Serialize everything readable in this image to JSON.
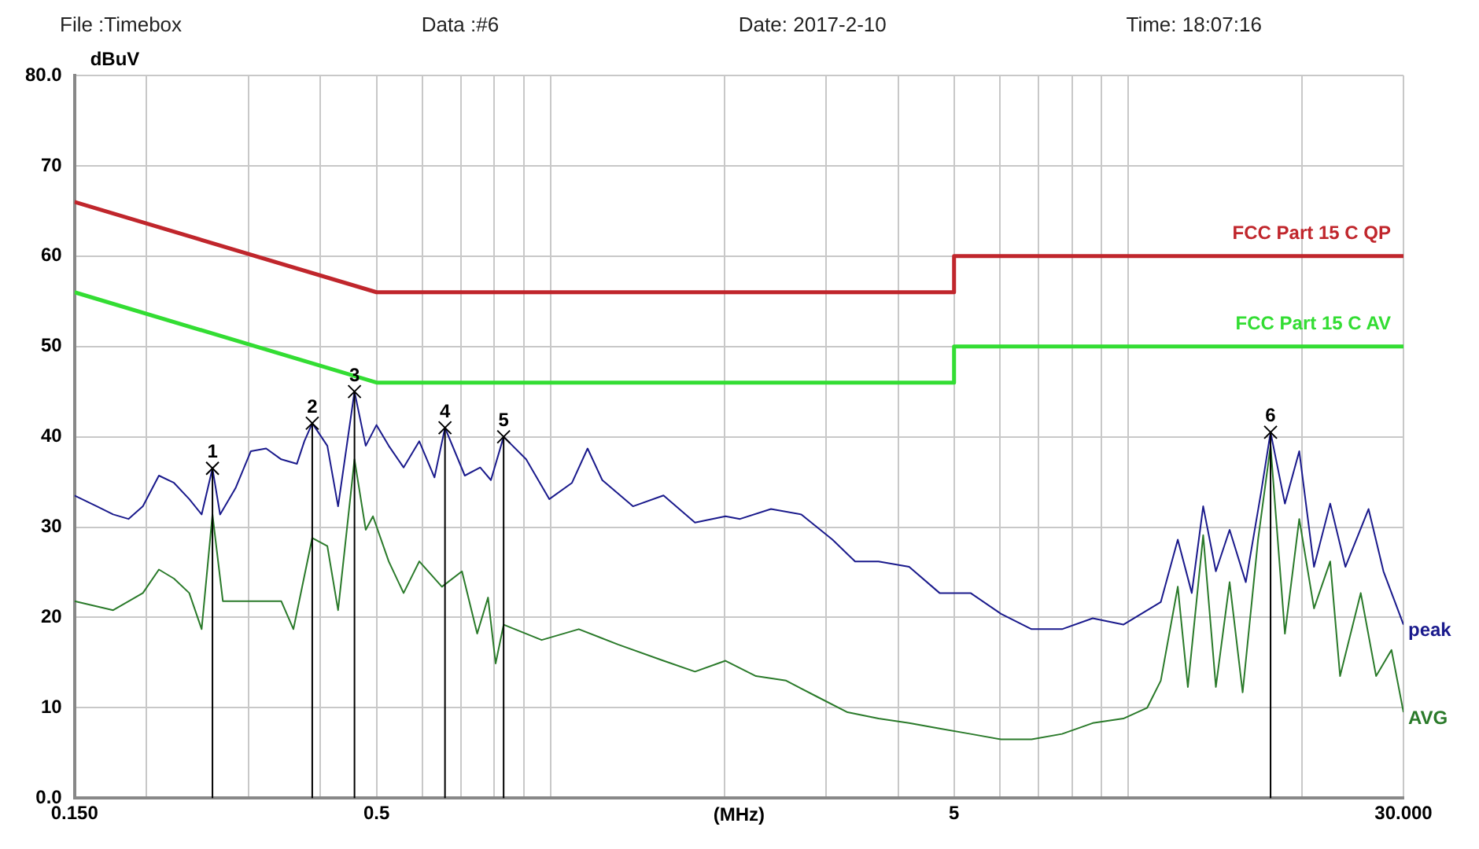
{
  "chart_data": {
    "type": "line",
    "ylabel": "dBuV",
    "xlabel": "(MHz)",
    "log": "x",
    "grid": true,
    "legend": false,
    "marker": "none",
    "line_style": "solid",
    "xlim": [
      0.15,
      30
    ],
    "xticks": [
      {
        "value": 0.15,
        "label": "0.150"
      },
      {
        "value": 0.2,
        "label": null
      },
      {
        "value": 0.3,
        "label": null
      },
      {
        "value": 0.4,
        "label": null
      },
      0.5,
      {
        "value": 0.6,
        "label": null
      },
      {
        "value": 0.7,
        "label": null
      },
      {
        "value": 0.8,
        "label": null
      },
      {
        "value": 0.9,
        "label": null
      },
      {
        "value": 1,
        "label": null
      },
      {
        "value": 2,
        "label": null
      },
      {
        "value": 3,
        "label": null
      },
      {
        "value": 4,
        "label": null
      },
      5,
      {
        "value": 6,
        "label": null
      },
      {
        "value": 7,
        "label": null
      },
      {
        "value": 8,
        "label": null
      },
      {
        "value": 9,
        "label": null
      },
      {
        "value": 10,
        "label": null
      },
      {
        "value": 20,
        "label": null
      },
      {
        "value": 30,
        "label": "30.000"
      }
    ],
    "ylim": [
      0,
      80
    ],
    "yticks": [
      {
        "value": 0,
        "label": "0.0"
      },
      10,
      20,
      30,
      40,
      50,
      60,
      70,
      {
        "value": 80,
        "label": "80.0"
      }
    ],
    "series": [
      {
        "name": "FCC Part 15 C QP",
        "color": "#c0262c",
        "x": [
          0.15,
          0.5,
          5,
          5,
          30
        ],
        "values": [
          66,
          56,
          56,
          60,
          60
        ]
      },
      {
        "name": "FCC Part 15 C AV",
        "color": "#33dd33",
        "x": [
          0.15,
          0.5,
          5,
          5,
          30
        ],
        "values": [
          56,
          46,
          46,
          50,
          50
        ]
      },
      {
        "name": "peak",
        "color": "#1a1a8c",
        "x": [
          0.15,
          0.164,
          0.175,
          0.186,
          0.197,
          0.21,
          0.223,
          0.237,
          0.249,
          0.26,
          0.268,
          0.285,
          0.303,
          0.322,
          0.342,
          0.364,
          0.375,
          0.387,
          0.411,
          0.429,
          0.458,
          0.479,
          0.5,
          0.525,
          0.557,
          0.593,
          0.63,
          0.657,
          0.711,
          0.756,
          0.789,
          0.83,
          0.908,
          0.996,
          1.09,
          1.16,
          1.23,
          1.39,
          1.57,
          1.78,
          2.01,
          2.13,
          2.41,
          2.72,
          3.08,
          3.37,
          3.7,
          4.18,
          4.72,
          5.34,
          6.03,
          6.81,
          7.69,
          8.69,
          9.82,
          11.4,
          12.2,
          12.9,
          13.5,
          14.2,
          15.0,
          16.0,
          17.0,
          17.66,
          18.7,
          19.8,
          21.0,
          22.4,
          23.8,
          26.1,
          27.7,
          30
        ],
        "values": [
          33.5,
          32.3,
          31.4,
          30.9,
          32.3,
          35.7,
          34.9,
          33.1,
          31.4,
          36.5,
          31.4,
          34.3,
          38.4,
          38.7,
          37.5,
          37,
          39.5,
          41.5,
          39,
          32.3,
          45,
          39,
          41.3,
          39,
          36.6,
          39.5,
          35.5,
          41,
          35.7,
          36.6,
          35.2,
          40,
          37.5,
          33.1,
          34.9,
          38.7,
          35.2,
          32.3,
          33.5,
          30.5,
          31.2,
          30.9,
          32,
          31.4,
          28.6,
          26.2,
          26.2,
          25.6,
          22.7,
          22.7,
          20.4,
          18.7,
          18.7,
          19.9,
          19.2,
          21.7,
          28.6,
          22.7,
          32.3,
          25.1,
          29.7,
          23.9,
          33.8,
          40.5,
          32.6,
          38.4,
          25.6,
          32.6,
          25.6,
          32,
          25.1,
          19.2
        ]
      },
      {
        "name": "AVG",
        "color": "#2a7a2a",
        "x": [
          0.15,
          0.175,
          0.197,
          0.21,
          0.223,
          0.237,
          0.249,
          0.26,
          0.271,
          0.303,
          0.342,
          0.359,
          0.387,
          0.411,
          0.429,
          0.458,
          0.479,
          0.493,
          0.525,
          0.557,
          0.593,
          0.649,
          0.703,
          0.747,
          0.78,
          0.804,
          0.83,
          0.966,
          1.12,
          1.31,
          1.57,
          1.78,
          2.01,
          2.27,
          2.56,
          2.9,
          3.27,
          3.7,
          4.18,
          4.72,
          5.34,
          6.03,
          6.81,
          7.69,
          8.69,
          9.82,
          10.8,
          11.4,
          12.2,
          12.7,
          13.5,
          14.2,
          15.0,
          15.8,
          16.8,
          17.66,
          18.7,
          19.8,
          21.0,
          22.4,
          23.3,
          25.3,
          26.9,
          28.6,
          30
        ],
        "values": [
          21.8,
          20.8,
          22.7,
          25.3,
          24.3,
          22.7,
          18.7,
          31.4,
          21.8,
          21.8,
          21.8,
          18.7,
          28.8,
          27.9,
          20.8,
          37.5,
          29.7,
          31.2,
          26.2,
          22.7,
          26.2,
          23.4,
          25.1,
          18.2,
          22.2,
          14.9,
          19.2,
          17.5,
          18.7,
          17,
          15.2,
          14,
          15.2,
          13.5,
          13,
          11.2,
          9.5,
          8.8,
          8.3,
          7.7,
          7.1,
          6.5,
          6.5,
          7.1,
          8.3,
          8.8,
          10,
          13,
          23.4,
          12.3,
          29.1,
          12.3,
          23.9,
          11.7,
          28.6,
          39,
          18.2,
          30.9,
          21,
          26.2,
          13.5,
          22.7,
          13.5,
          16.4,
          9.5
        ]
      }
    ],
    "annotations": [
      "File :Timebox",
      "Data :#6",
      "Date: 2017-2-10",
      "Time: 18:07:16",
      {
        "text": "1",
        "x": 0.26,
        "y": 36.5
      },
      {
        "text": "2",
        "x": 0.387,
        "y": 41.5
      },
      {
        "text": "3",
        "x": 0.458,
        "y": 45
      },
      {
        "text": "4",
        "x": 0.657,
        "y": 41
      },
      {
        "text": "5",
        "x": 0.83,
        "y": 40
      },
      {
        "text": "6",
        "x": 17.66,
        "y": 40.5
      }
    ]
  }
}
